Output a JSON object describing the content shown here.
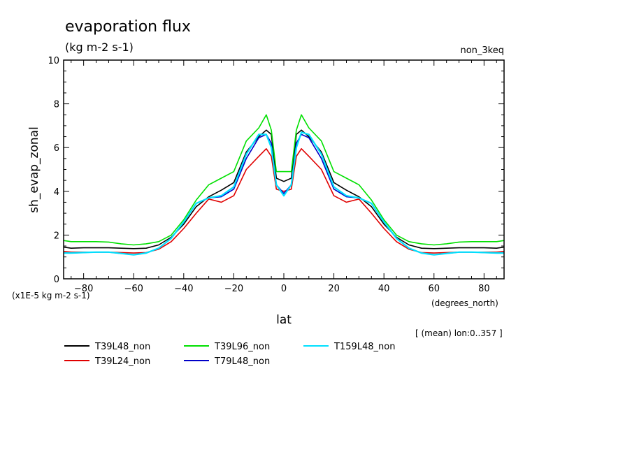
{
  "header": {
    "title": "evaporation flux",
    "units": "(kg m-2 s-1)",
    "experiment": "non_3keq",
    "scale_note": "(x1E-5 kg m-2 s-1)",
    "x_units": "(degrees_north)",
    "mean_note": "[ (mean) lon:0..357 ]"
  },
  "chart_data": {
    "type": "line",
    "title": "evaporation flux",
    "xlabel": "lat",
    "ylabel": "sh_evap_zonal",
    "xlim": [
      -88,
      88
    ],
    "ylim": [
      0,
      10
    ],
    "x_ticks": [
      -80,
      -60,
      -40,
      -20,
      0,
      20,
      40,
      60,
      80
    ],
    "y_ticks": [
      0,
      2,
      4,
      6,
      8,
      10
    ],
    "grid": false,
    "legend_position": "bottom",
    "x": [
      -88,
      -85,
      -80,
      -75,
      -70,
      -65,
      -60,
      -55,
      -50,
      -45,
      -40,
      -35,
      -30,
      -25,
      -20,
      -15,
      -10,
      -7,
      -5,
      -3,
      0,
      3,
      5,
      7,
      10,
      15,
      20,
      25,
      30,
      35,
      40,
      45,
      50,
      55,
      60,
      65,
      70,
      75,
      80,
      85,
      88
    ],
    "series": [
      {
        "name": "T39L48_non",
        "color": "#000000",
        "values": [
          1.45,
          1.4,
          1.42,
          1.42,
          1.42,
          1.4,
          1.38,
          1.4,
          1.55,
          1.9,
          2.5,
          3.3,
          3.75,
          4.05,
          4.4,
          5.8,
          6.5,
          6.8,
          6.6,
          4.6,
          4.45,
          4.6,
          6.6,
          6.8,
          6.5,
          5.8,
          4.4,
          4.05,
          3.75,
          3.3,
          2.5,
          1.9,
          1.55,
          1.4,
          1.38,
          1.4,
          1.42,
          1.42,
          1.42,
          1.4,
          1.45
        ]
      },
      {
        "name": "T39L24_non",
        "color": "#e00000",
        "values": [
          1.25,
          1.22,
          1.22,
          1.22,
          1.22,
          1.2,
          1.18,
          1.2,
          1.35,
          1.7,
          2.3,
          3.0,
          3.65,
          3.5,
          3.8,
          5.0,
          5.6,
          5.95,
          5.6,
          4.1,
          4.0,
          4.1,
          5.6,
          5.95,
          5.6,
          5.0,
          3.8,
          3.5,
          3.65,
          3.0,
          2.3,
          1.7,
          1.35,
          1.2,
          1.18,
          1.2,
          1.22,
          1.22,
          1.22,
          1.22,
          1.25
        ]
      },
      {
        "name": "T39L96_non",
        "color": "#00e000",
        "values": [
          1.75,
          1.7,
          1.7,
          1.7,
          1.68,
          1.6,
          1.55,
          1.6,
          1.7,
          2.0,
          2.7,
          3.6,
          4.3,
          4.6,
          4.9,
          6.3,
          6.9,
          7.5,
          6.8,
          4.9,
          4.9,
          4.9,
          6.8,
          7.5,
          6.9,
          6.3,
          4.9,
          4.6,
          4.3,
          3.6,
          2.7,
          2.0,
          1.7,
          1.6,
          1.55,
          1.6,
          1.68,
          1.7,
          1.7,
          1.7,
          1.75
        ]
      },
      {
        "name": "T79L48_non",
        "color": "#0000c8",
        "values": [
          1.18,
          1.18,
          1.2,
          1.22,
          1.22,
          1.16,
          1.1,
          1.18,
          1.4,
          1.85,
          2.6,
          3.45,
          3.7,
          3.75,
          4.1,
          5.5,
          6.45,
          6.6,
          6.2,
          4.3,
          3.9,
          4.3,
          6.2,
          6.6,
          6.45,
          5.5,
          4.1,
          3.75,
          3.7,
          3.45,
          2.6,
          1.85,
          1.4,
          1.18,
          1.1,
          1.16,
          1.22,
          1.22,
          1.2,
          1.18,
          1.18
        ]
      },
      {
        "name": "T159L48_non",
        "color": "#00e0ff",
        "values": [
          1.18,
          1.18,
          1.2,
          1.22,
          1.22,
          1.16,
          1.1,
          1.18,
          1.4,
          1.85,
          2.6,
          3.45,
          3.7,
          3.8,
          4.2,
          5.7,
          6.6,
          6.6,
          6.0,
          4.3,
          3.8,
          4.3,
          6.0,
          6.7,
          6.6,
          5.7,
          4.2,
          3.8,
          3.7,
          3.45,
          2.6,
          1.85,
          1.4,
          1.18,
          1.1,
          1.16,
          1.22,
          1.22,
          1.2,
          1.18,
          1.18
        ]
      }
    ]
  }
}
